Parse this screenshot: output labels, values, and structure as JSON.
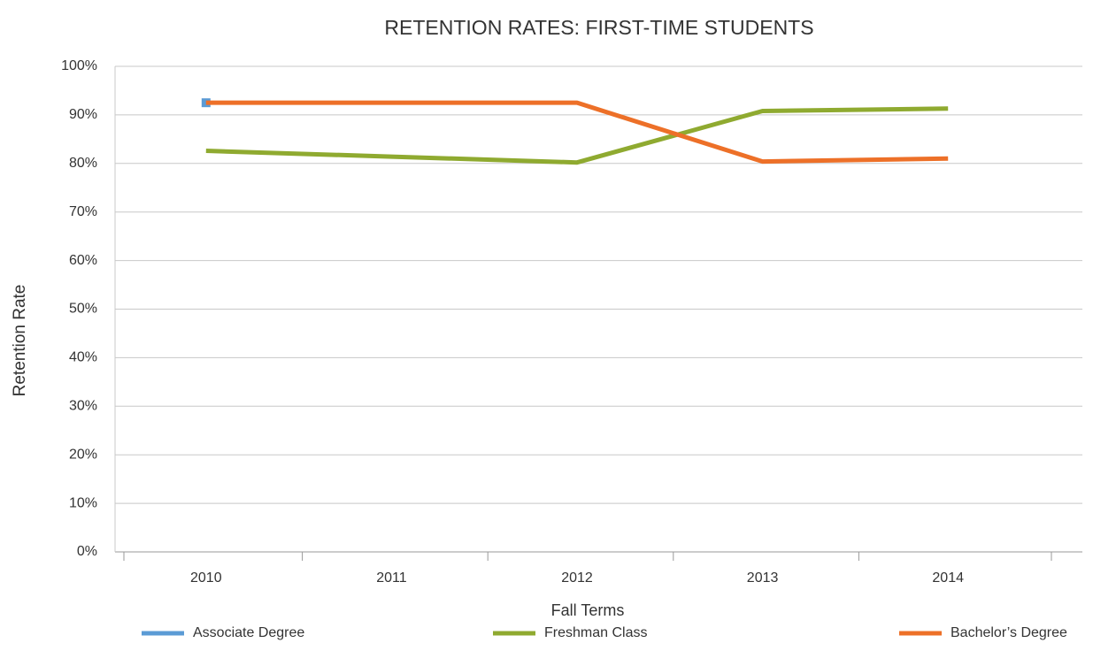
{
  "chart_data": {
    "type": "line",
    "title": "RETENTION RATES: FIRST-TIME STUDENTS",
    "x_label": "Fall Terms",
    "y_label": "Retention Rate",
    "categories": [
      "2010",
      "2011",
      "2012",
      "2013",
      "2014"
    ],
    "series": [
      {
        "name": "Associate Degree",
        "color": "#5b9bd5",
        "values": [
          92.5,
          null,
          null,
          null,
          null
        ]
      },
      {
        "name": "Freshman Class",
        "color": "#8faa30",
        "values": [
          82.6,
          81.4,
          80.2,
          90.8,
          91.3
        ]
      },
      {
        "name": "Bachelor’s Degree",
        "color": "#ed7028",
        "values": [
          92.5,
          92.5,
          92.5,
          80.4,
          81.0
        ]
      }
    ],
    "ylim": [
      0,
      100
    ],
    "yticks": [
      {
        "value": 0,
        "label": "0%"
      },
      {
        "value": 10,
        "label": "10%"
      },
      {
        "value": 20,
        "label": "20%"
      },
      {
        "value": 30,
        "label": "30%"
      },
      {
        "value": 40,
        "label": "40%"
      },
      {
        "value": 50,
        "label": "50%"
      },
      {
        "value": 60,
        "label": "60%"
      },
      {
        "value": 70,
        "label": "70%"
      },
      {
        "value": 80,
        "label": "80%"
      },
      {
        "value": 90,
        "label": "90%"
      },
      {
        "value": 100,
        "label": "100%"
      }
    ],
    "grid": true,
    "legend": "bottom"
  }
}
